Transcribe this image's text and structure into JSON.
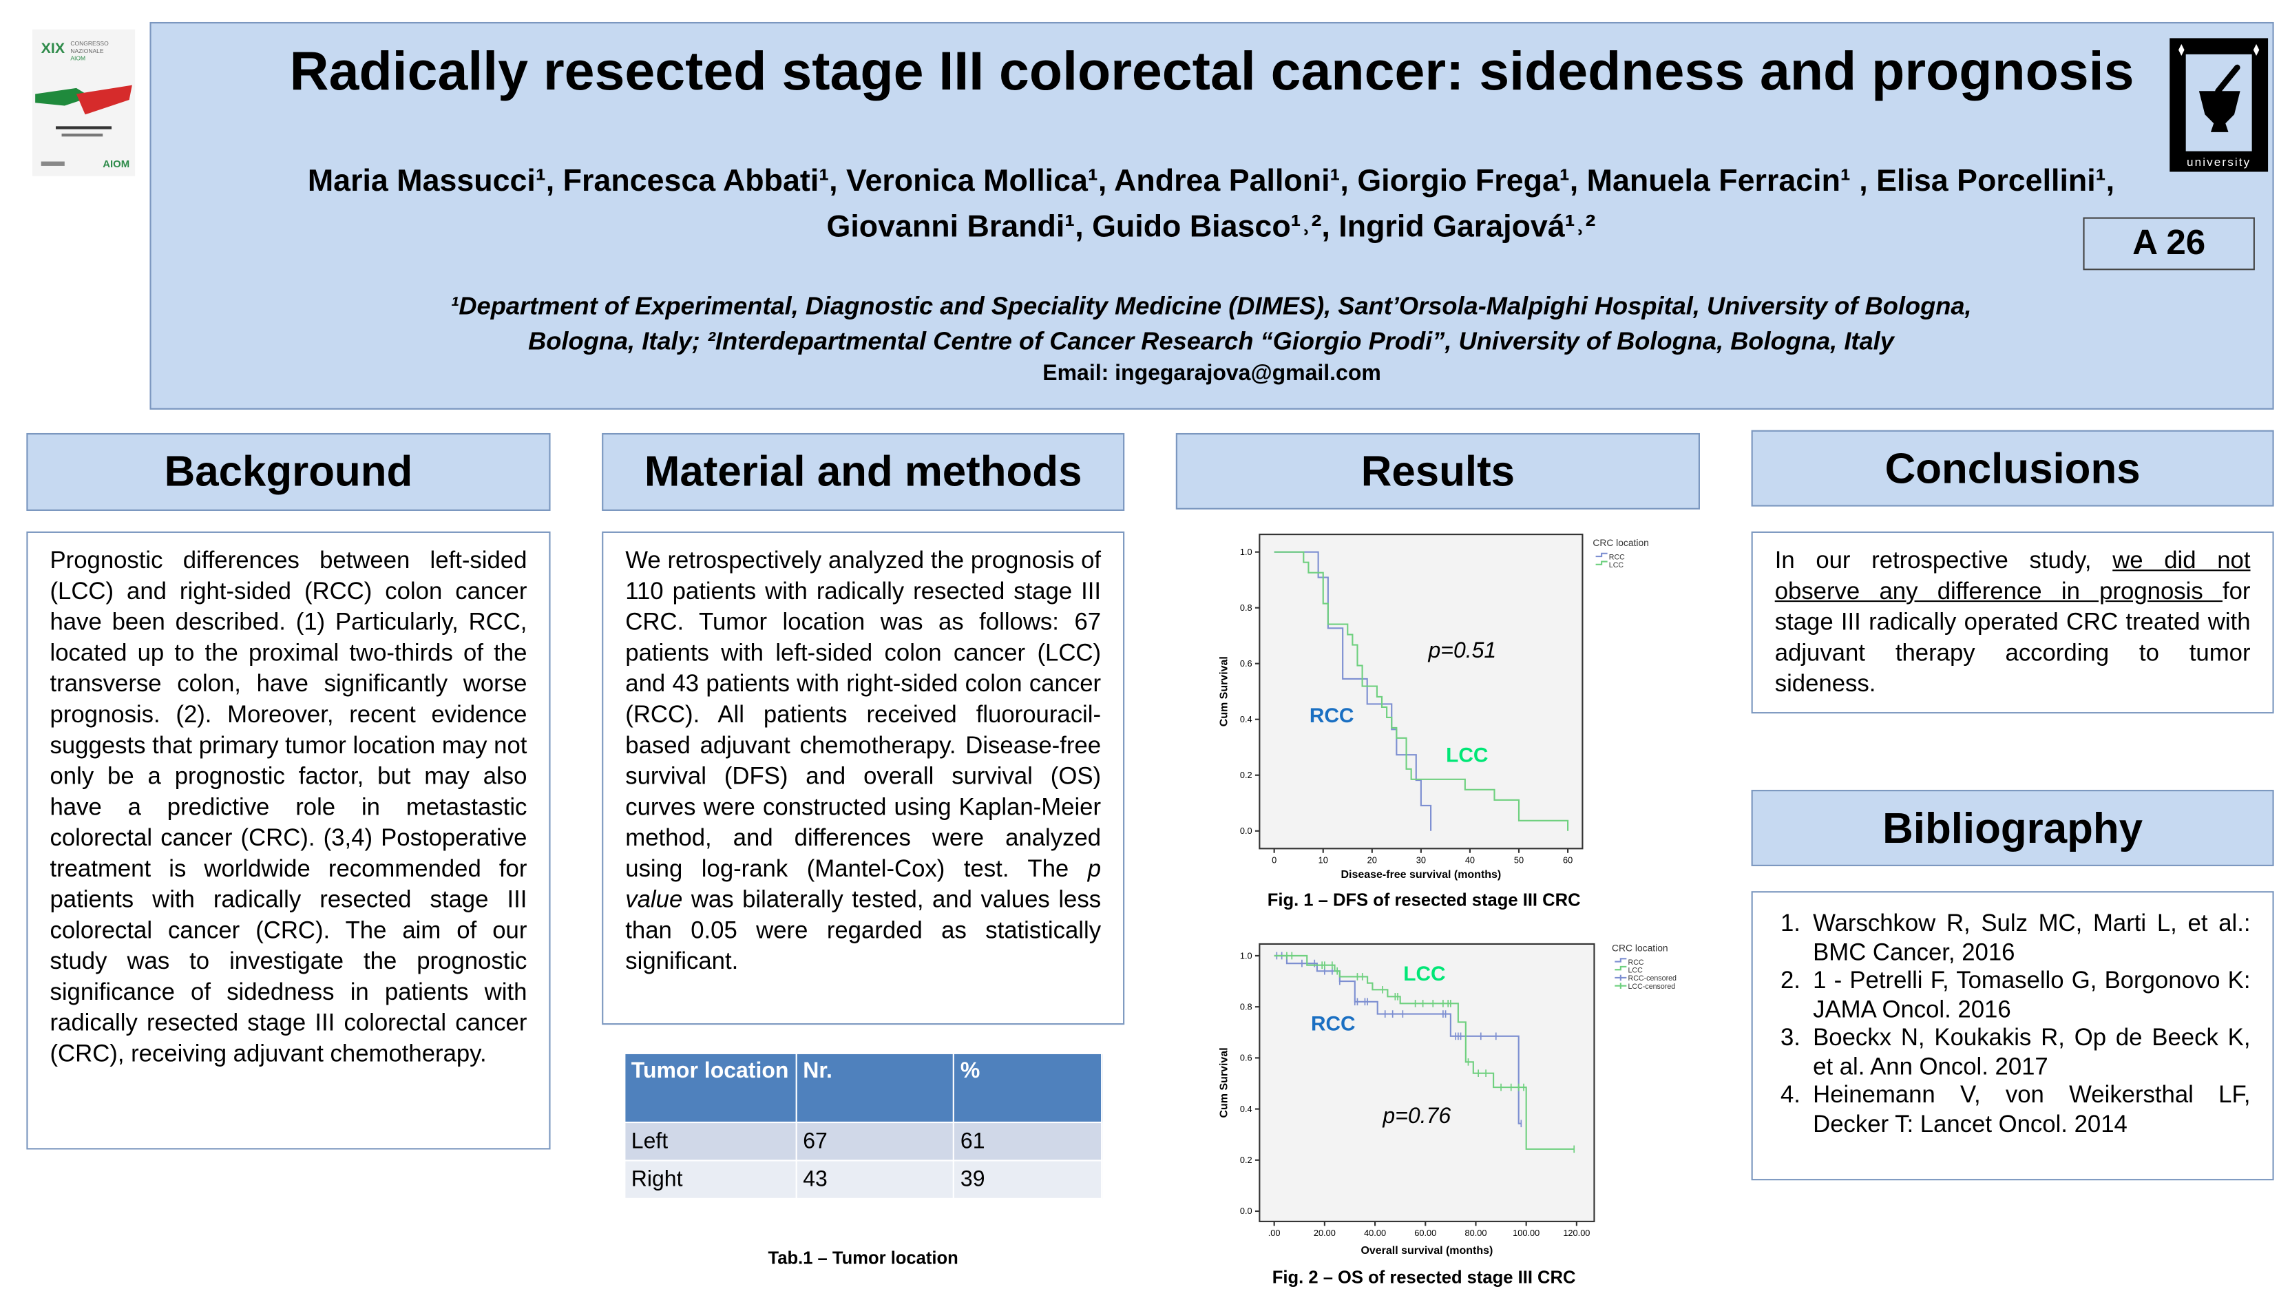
{
  "header": {
    "title": "Radically resected stage III colorectal cancer: sidedness and prognosis",
    "authors_line1": "Maria Massucci¹, Francesca Abbati¹, Veronica Mollica¹, Andrea Palloni¹, Giorgio Frega¹, Manuela Ferracin¹ , Elisa Porcellini¹,",
    "authors_line2": "Giovanni Brandi¹, Guido Biasco¹˒², Ingrid Garajová¹˒²",
    "affiliation_line1": "¹Department of Experimental, Diagnostic and Speciality Medicine (DIMES), Sant’Orsola-Malpighi Hospital, University of Bologna,",
    "affiliation_line2": "Bologna, Italy; ²Interdepartmental Centre of Cancer Research “Giorgio Prodi”, University of Bologna, Bologna, Italy",
    "email": "Email: ingegarajova@gmail.com",
    "poster_code": "A 26",
    "left_logo_text": "XIX Congresso Nazionale AIOM",
    "right_logo_text": "university"
  },
  "background": {
    "heading": "Background",
    "text": "Prognostic differences between left-sided (LCC) and right-sided (RCC) colon cancer have been described. (1) Particularly, RCC, located up to the proximal two-thirds of the transverse colon, have significantly worse prognosis. (2). Moreover, recent evidence suggests that primary tumor location may not only be a prognostic factor, but may also have a predictive role in metastastic colorectal cancer (CRC). (3,4) Postoperative treatment is worldwide recommended for patients with radically resected stage III colorectal cancer (CRC). The aim of our study was to investigate the prognostic significance of sidedness in patients with radically resected stage III colorectal cancer (CRC), receiving adjuvant chemotherapy."
  },
  "methods": {
    "heading": "Material and methods",
    "text_a": "We retrospectively analyzed the prognosis of 110 patients with radically resected stage III CRC. Tumor location was as follows: 67 patients with left-sided colon cancer (LCC) and 43 patients with right-sided colon cancer (RCC). All patients received fluorouracil-based adjuvant chemotherapy. Disease-free survival (DFS) and overall survival (OS) curves were constructed using Kaplan-Meier method, and differences were analyzed using log-rank (Mantel-Cox) test. The ",
    "text_p": "p value",
    "text_b": " was bilaterally tested, and values less than 0.05 were regarded as statistically significant.",
    "table": {
      "headers": [
        "Tumor location",
        "Nr.",
        "%"
      ],
      "rows": [
        [
          "Left",
          "67",
          "61"
        ],
        [
          "Right",
          "43",
          "39"
        ]
      ]
    },
    "table_caption": "Tab.1 – Tumor location"
  },
  "results": {
    "heading": "Results"
  },
  "conclusions": {
    "heading": "Conclusions",
    "text_a": "In our retrospective study, ",
    "text_u": "we did not observe any difference in prognosis ",
    "text_b": "for stage III radically operated CRC treated with adjuvant therapy according to tumor sideness."
  },
  "bibliography": {
    "heading": "Bibliography",
    "items": [
      "Warschkow R, Sulz MC, Marti L, et al.: BMC Cancer, 2016",
      "1 - Petrelli F, Tomasello G, Borgonovo K: JAMA Oncol. 2016",
      "Boeckx N, Koukakis R, Op de Beeck K, et al. Ann Oncol. 2017",
      "Heinemann V, von Weikersthal LF, Decker T: Lancet Oncol. 2014"
    ]
  },
  "colors": {
    "rcc": "#7d8fd1",
    "lcc": "#6fd07f",
    "rcc_label": "#1a6fc2",
    "lcc_label": "#00e676",
    "header_bg": "#c6d9f1",
    "table_head": "#4f81bd"
  },
  "chart_data": [
    {
      "type": "line",
      "title": "Fig. 1 – DFS of resected stage III CRC",
      "xlabel": "Disease-free survival (months)",
      "ylabel": "Cum Survival",
      "xlim": [
        0,
        60
      ],
      "ylim": [
        0,
        1
      ],
      "xticks": [
        "0",
        "10",
        "20",
        "30",
        "40",
        "50",
        "60"
      ],
      "yticks": [
        "0.0",
        "0.2",
        "0.4",
        "0.6",
        "0.8",
        "1.0"
      ],
      "legend_title": "CRC location",
      "legend": [
        "RCC",
        "LCC"
      ],
      "annotation": "p=0.51",
      "labels": [
        "RCC",
        "LCC"
      ],
      "series": [
        {
          "name": "RCC",
          "steps": [
            [
              0,
              1
            ],
            [
              9,
              0.909
            ],
            [
              11,
              0.727
            ],
            [
              14,
              0.545
            ],
            [
              19,
              0.455
            ],
            [
              24,
              0.364
            ],
            [
              25,
              0.273
            ],
            [
              29,
              0.182
            ],
            [
              30,
              0.091
            ],
            [
              32,
              0
            ]
          ],
          "end": 32,
          "censored": []
        },
        {
          "name": "LCC",
          "steps": [
            [
              0,
              1
            ],
            [
              6,
              0.963
            ],
            [
              7,
              0.926
            ],
            [
              10,
              0.815
            ],
            [
              11,
              0.741
            ],
            [
              15,
              0.704
            ],
            [
              16,
              0.667
            ],
            [
              17,
              0.593
            ],
            [
              18,
              0.519
            ],
            [
              21,
              0.481
            ],
            [
              22,
              0.444
            ],
            [
              23,
              0.407
            ],
            [
              24,
              0.37
            ],
            [
              25,
              0.333
            ],
            [
              27,
              0.222
            ],
            [
              28,
              0.185
            ],
            [
              39,
              0.148
            ],
            [
              45,
              0.111
            ],
            [
              50,
              0.037
            ],
            [
              60,
              0
            ]
          ],
          "end": 60,
          "censored": []
        }
      ]
    },
    {
      "type": "line",
      "title": "Fig. 2 – OS of resected stage III CRC",
      "xlabel": "Overall survival (months)",
      "ylabel": "Cum Survival",
      "xlim": [
        0,
        120
      ],
      "ylim": [
        0,
        1
      ],
      "xticks": [
        ".00",
        "20.00",
        "40.00",
        "60.00",
        "80.00",
        "100.00",
        "120.00"
      ],
      "yticks": [
        "0.0",
        "0.2",
        "0.4",
        "0.6",
        "0.8",
        "1.0"
      ],
      "legend_title": "CRC location",
      "legend": [
        "RCC",
        "LCC",
        "RCC-censored",
        "LCC-censored"
      ],
      "annotation": "p=0.76",
      "labels": [
        "RCC",
        "LCC"
      ],
      "series": [
        {
          "name": "RCC",
          "steps": [
            [
              0,
              1
            ],
            [
              5,
              0.97
            ],
            [
              17,
              0.94
            ],
            [
              26,
              0.9
            ],
            [
              32,
              0.82
            ],
            [
              41,
              0.772
            ],
            [
              70,
              0.685
            ],
            [
              97,
              0.343
            ]
          ],
          "end": 98,
          "censored": [
            1,
            3,
            11,
            16,
            20,
            23,
            26,
            32,
            33,
            36,
            37,
            44,
            47,
            51,
            67,
            68,
            72,
            73,
            74,
            82,
            88,
            98
          ]
        },
        {
          "name": "LCC",
          "steps": [
            [
              0,
              1
            ],
            [
              13,
              0.963
            ],
            [
              24,
              0.94
            ],
            [
              26,
              0.918
            ],
            [
              37,
              0.893
            ],
            [
              39,
              0.867
            ],
            [
              45,
              0.84
            ],
            [
              50,
              0.813
            ],
            [
              73,
              0.74
            ],
            [
              76,
              0.584
            ],
            [
              79,
              0.54
            ],
            [
              87,
              0.485
            ],
            [
              100,
              0.243
            ]
          ],
          "end": 119,
          "censored": [
            5,
            7,
            19,
            20,
            23,
            25,
            33,
            35,
            43,
            48,
            49,
            56,
            59,
            63,
            67,
            69,
            70,
            77,
            81,
            84,
            90,
            94,
            97,
            99,
            119
          ]
        }
      ]
    }
  ]
}
